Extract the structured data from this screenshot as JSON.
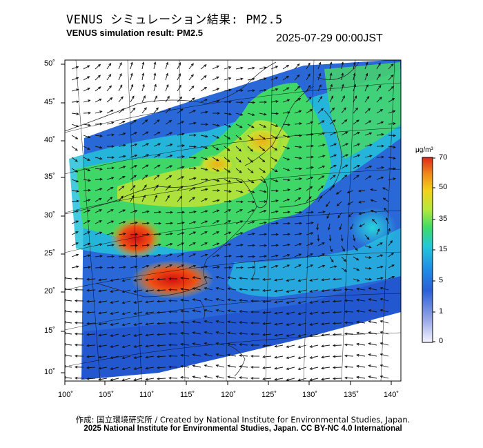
{
  "header": {
    "title_jp": "VENUS シミュレーション結果: PM2.5",
    "title_en": "VENUS simulation result: PM2.5",
    "timestamp": "2025-07-29 00:00JST"
  },
  "map": {
    "lon_ticks": [
      "100˚",
      "105˚",
      "110˚",
      "115˚",
      "120˚",
      "125˚",
      "130˚",
      "135˚",
      "140˚"
    ],
    "lat_ticks": [
      "50˚",
      "45˚",
      "40˚",
      "35˚",
      "30˚",
      "25˚",
      "20˚",
      "15˚",
      "10˚"
    ]
  },
  "colorbar": {
    "unit": "μg/m³",
    "ticks": [
      "70",
      "50",
      "35",
      "15",
      "5",
      "1",
      "0"
    ],
    "colors": [
      "#f0f0ff",
      "#9aa9e6",
      "#2b5fd9",
      "#1f8fe8",
      "#22c9d8",
      "#3ddb6a",
      "#b7e83a",
      "#f2d21a",
      "#f08a1a",
      "#e0261a"
    ]
  },
  "credits": {
    "line1": "作成: 国立環境研究所 / Created by National Institute for Environmental Studies, Japan.",
    "line2": "2025 National Institute for Environmental Studies, Japan. CC BY-NC 4.0 International"
  }
}
